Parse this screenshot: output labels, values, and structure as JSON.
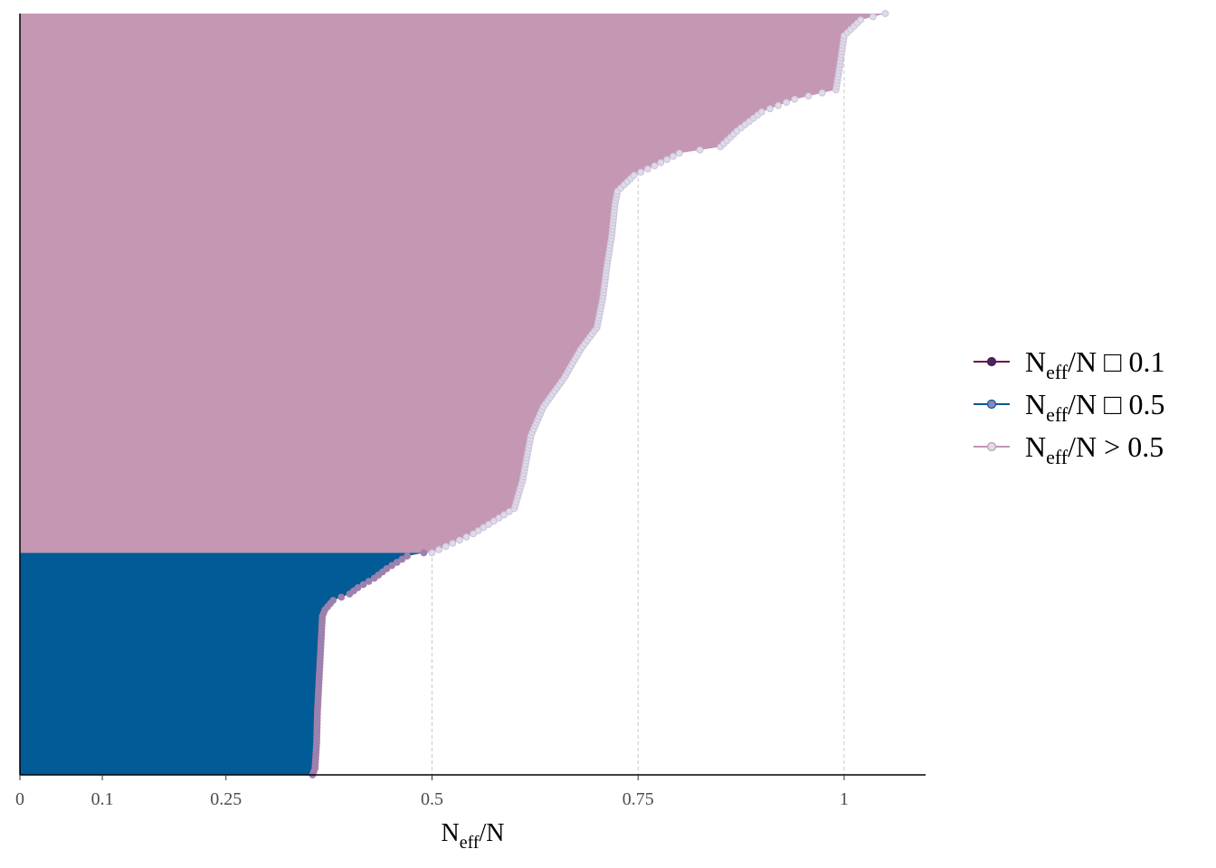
{
  "colors": {
    "low": "#6b0f3f",
    "mid": "#005b96",
    "high": "#c497b2",
    "grid": "#c8c8c8",
    "axis": "#000000"
  },
  "chart_data": {
    "type": "area",
    "title": "",
    "xlabel_main": "N",
    "xlabel_sub": "eff",
    "xlabel_tail": "/N",
    "ylabel": "",
    "xlim": [
      0,
      1.1
    ],
    "xticks": [
      0,
      0.1,
      0.25,
      0.5,
      0.75,
      1
    ],
    "xtick_labels": [
      "0",
      "0.1",
      "0.25",
      "0.5",
      "0.75",
      "1"
    ],
    "n_params": 480,
    "grid": "vertical dashed at x ticks",
    "legend_position": "right",
    "legend": [
      {
        "main": "N",
        "sub": "eff",
        "tail": "/N □ 0.1",
        "color_key": "low"
      },
      {
        "main": "N",
        "sub": "eff",
        "tail": "/N □ 0.5",
        "color_key": "mid"
      },
      {
        "main": "N",
        "sub": "eff",
        "tail": "/N > 0.5",
        "color_key": "high"
      }
    ],
    "series": [
      {
        "name": "Neff/N □ 0.5",
        "color_key": "mid",
        "profile": [
          [
            0,
            0.355
          ],
          [
            4,
            0.358
          ],
          [
            20,
            0.36
          ],
          [
            40,
            0.361
          ],
          [
            60,
            0.363
          ],
          [
            80,
            0.365
          ],
          [
            100,
            0.367
          ],
          [
            104,
            0.37
          ],
          [
            110,
            0.38
          ],
          [
            114,
            0.4
          ],
          [
            118,
            0.41
          ],
          [
            124,
            0.43
          ],
          [
            130,
            0.445
          ],
          [
            138,
            0.47
          ],
          [
            140,
            0.49
          ]
        ]
      },
      {
        "name": "Neff/N > 0.5",
        "color_key": "high",
        "profile": [
          [
            140,
            0.5
          ],
          [
            152,
            0.55
          ],
          [
            160,
            0.575
          ],
          [
            168,
            0.6
          ],
          [
            186,
            0.61
          ],
          [
            214,
            0.62
          ],
          [
            232,
            0.635
          ],
          [
            250,
            0.66
          ],
          [
            268,
            0.68
          ],
          [
            282,
            0.7
          ],
          [
            300,
            0.707
          ],
          [
            320,
            0.712
          ],
          [
            340,
            0.718
          ],
          [
            360,
            0.722
          ],
          [
            368,
            0.725
          ],
          [
            378,
            0.745
          ],
          [
            384,
            0.77
          ],
          [
            392,
            0.8
          ],
          [
            396,
            0.85
          ],
          [
            406,
            0.87
          ],
          [
            418,
            0.9
          ],
          [
            426,
            0.94
          ],
          [
            432,
            0.99
          ],
          [
            448,
            0.995
          ],
          [
            466,
            1.0
          ],
          [
            476,
            1.02
          ],
          [
            480,
            1.05
          ]
        ]
      }
    ]
  }
}
